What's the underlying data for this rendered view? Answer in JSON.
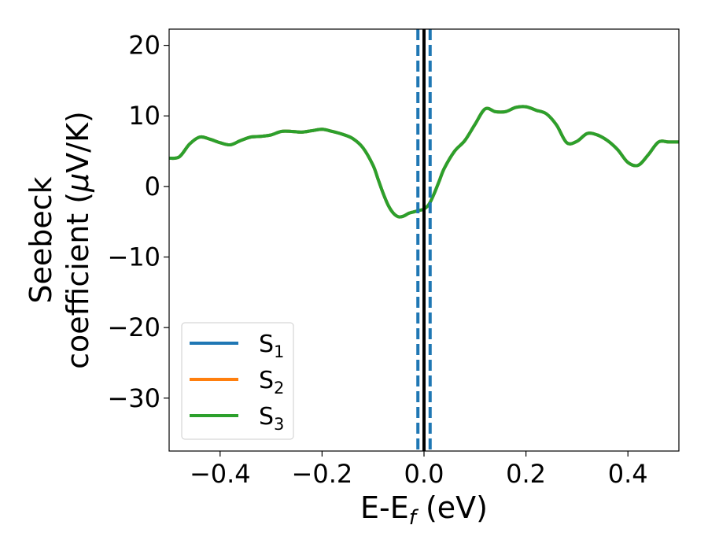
{
  "chart_data": {
    "type": "line",
    "xlabel": "E-E",
    "xlabel_sub": "f",
    "xlabel_unit": " (eV)",
    "ylabel_line1": "Seebeck",
    "ylabel_line2_text": "coefficient  (",
    "ylabel_line2_mu": "μ",
    "ylabel_line2_unit": "V/K)",
    "xlim": [
      -0.5,
      0.5
    ],
    "ylim": [
      -37.5,
      22.3
    ],
    "xticks": [
      -0.4,
      -0.2,
      0.0,
      0.2,
      0.4
    ],
    "xtick_labels": [
      "−0.4",
      "−0.2",
      "0.0",
      "0.2",
      "0.4"
    ],
    "yticks": [
      -30,
      -20,
      -10,
      0,
      10,
      20
    ],
    "ytick_labels": [
      "−30",
      "−20",
      "−10",
      "0",
      "10",
      "20"
    ],
    "grid": false,
    "legend_position": "lower-left",
    "vlines": [
      {
        "x": 0.0,
        "style": "solid",
        "color": "#000000"
      },
      {
        "x": -0.012,
        "style": "dashed",
        "color": "#1f77b4"
      },
      {
        "x": 0.012,
        "style": "dashed",
        "color": "#1f77b4"
      }
    ],
    "x": [
      -0.5,
      -0.48,
      -0.46,
      -0.44,
      -0.42,
      -0.4,
      -0.38,
      -0.36,
      -0.34,
      -0.32,
      -0.3,
      -0.28,
      -0.26,
      -0.24,
      -0.22,
      -0.2,
      -0.18,
      -0.16,
      -0.14,
      -0.12,
      -0.1,
      -0.09,
      -0.08,
      -0.07,
      -0.06,
      -0.05,
      -0.04,
      -0.03,
      -0.02,
      -0.01,
      0.0,
      0.01,
      0.02,
      0.03,
      0.04,
      0.06,
      0.08,
      0.1,
      0.12,
      0.14,
      0.16,
      0.18,
      0.2,
      0.22,
      0.24,
      0.26,
      0.28,
      0.3,
      0.32,
      0.34,
      0.36,
      0.38,
      0.4,
      0.42,
      0.44,
      0.46,
      0.48,
      0.5
    ],
    "series": [
      {
        "name": "S",
        "sub": "1",
        "color": "#1f77b4",
        "values": [
          4.0,
          4.2,
          6.0,
          7.0,
          6.7,
          6.2,
          5.9,
          6.5,
          7.0,
          7.1,
          7.3,
          7.8,
          7.8,
          7.7,
          7.9,
          8.1,
          7.8,
          7.4,
          6.8,
          5.5,
          3.0,
          1.0,
          -1.0,
          -2.7,
          -3.8,
          -4.3,
          -4.2,
          -3.8,
          -3.6,
          -3.4,
          -3.2,
          -2.5,
          -1.0,
          0.8,
          2.6,
          5.0,
          6.5,
          8.8,
          11.0,
          10.6,
          10.6,
          11.2,
          11.3,
          10.8,
          10.3,
          8.7,
          6.2,
          6.4,
          7.5,
          7.3,
          6.5,
          5.2,
          3.4,
          3.0,
          4.5,
          6.3,
          6.3,
          6.3
        ]
      },
      {
        "name": "S",
        "sub": "2",
        "color": "#ff7f0e",
        "values": [
          4.0,
          4.2,
          6.0,
          7.0,
          6.7,
          6.2,
          5.9,
          6.5,
          7.0,
          7.1,
          7.3,
          7.8,
          7.8,
          7.7,
          7.9,
          8.1,
          7.8,
          7.4,
          6.8,
          5.5,
          3.0,
          1.0,
          -1.0,
          -2.7,
          -3.8,
          -4.3,
          -4.2,
          -3.8,
          -3.6,
          -3.4,
          -3.2,
          -2.5,
          -1.0,
          0.8,
          2.6,
          5.0,
          6.5,
          8.8,
          11.0,
          10.6,
          10.6,
          11.2,
          11.3,
          10.8,
          10.3,
          8.7,
          6.2,
          6.4,
          7.5,
          7.3,
          6.5,
          5.2,
          3.4,
          3.0,
          4.5,
          6.3,
          6.3,
          6.3
        ]
      },
      {
        "name": "S",
        "sub": "3",
        "color": "#2ca02c",
        "values": [
          4.0,
          4.2,
          6.0,
          7.0,
          6.7,
          6.2,
          5.9,
          6.5,
          7.0,
          7.1,
          7.3,
          7.8,
          7.8,
          7.7,
          7.9,
          8.1,
          7.8,
          7.4,
          6.8,
          5.5,
          3.0,
          1.0,
          -1.0,
          -2.7,
          -3.8,
          -4.3,
          -4.2,
          -3.8,
          -3.6,
          -3.4,
          -3.2,
          -2.5,
          -1.0,
          0.8,
          2.6,
          5.0,
          6.5,
          8.8,
          11.0,
          10.6,
          10.6,
          11.2,
          11.3,
          10.8,
          10.3,
          8.7,
          6.2,
          6.4,
          7.5,
          7.3,
          6.5,
          5.2,
          3.4,
          3.0,
          4.5,
          6.3,
          6.3,
          6.3
        ]
      }
    ]
  }
}
